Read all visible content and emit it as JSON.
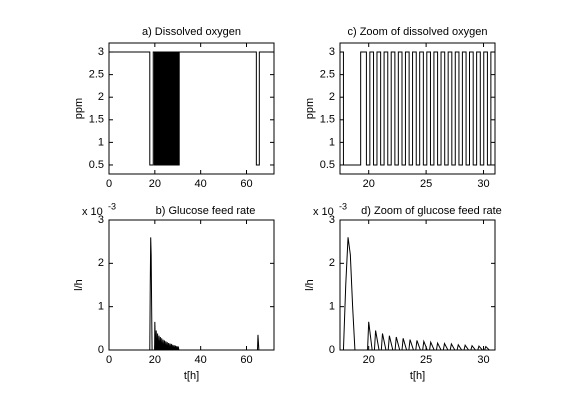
{
  "chart_data": [
    {
      "type": "line",
      "title": "a) Dissolved oxygen",
      "ylabel": "ppm",
      "xlim": [
        0,
        72
      ],
      "ylim": [
        0.3,
        3.2
      ],
      "xticks": [
        0,
        20,
        40,
        60
      ],
      "yticks": [
        0.5,
        1,
        1.5,
        2,
        2.5,
        3
      ],
      "x": [
        0,
        17.8,
        17.8,
        19.3,
        19.3,
        19.8,
        19.8,
        20.1,
        20.1,
        20.42,
        20.42,
        20.72,
        20.72,
        21.04,
        21.04,
        21.34,
        21.34,
        21.66,
        21.66,
        21.96,
        21.96,
        22.28,
        22.28,
        22.58,
        22.58,
        22.9,
        22.9,
        23.2,
        23.2,
        23.52,
        23.52,
        23.82,
        23.82,
        24.14,
        24.14,
        24.44,
        24.44,
        24.76,
        24.76,
        25.06,
        25.06,
        25.38,
        25.38,
        25.68,
        25.68,
        26.0,
        26.0,
        26.3,
        26.3,
        26.62,
        26.62,
        26.92,
        26.92,
        27.24,
        27.24,
        27.54,
        27.54,
        27.86,
        27.86,
        28.16,
        28.16,
        28.48,
        28.48,
        28.78,
        28.78,
        29.1,
        29.1,
        29.4,
        29.4,
        29.72,
        29.72,
        30.02,
        30.02,
        30.34,
        30.34,
        30.64,
        30.64,
        64.3,
        64.3,
        65.6,
        65.6,
        72
      ],
      "series": [
        {
          "color": "#000000",
          "values": [
            3,
            3,
            0.5,
            0.5,
            3,
            3,
            0.5,
            0.5,
            3,
            3,
            0.5,
            0.5,
            3,
            3,
            0.5,
            0.5,
            3,
            3,
            0.5,
            0.5,
            3,
            3,
            0.5,
            0.5,
            3,
            3,
            0.5,
            0.5,
            3,
            3,
            0.5,
            0.5,
            3,
            3,
            0.5,
            0.5,
            3,
            3,
            0.5,
            0.5,
            3,
            3,
            0.5,
            0.5,
            3,
            3,
            0.5,
            0.5,
            3,
            3,
            0.5,
            0.5,
            3,
            3,
            0.5,
            0.5,
            3,
            3,
            0.5,
            0.5,
            3,
            3,
            0.5,
            0.5,
            3,
            3,
            0.5,
            0.5,
            3,
            3,
            0.5,
            0.5,
            3,
            3,
            0.5,
            0.5,
            3,
            3,
            0.5,
            0.5,
            3,
            3
          ]
        }
      ]
    },
    {
      "type": "line",
      "title": "c) Zoom of dissolved oxygen",
      "ylabel": "ppm",
      "xlim": [
        17.5,
        31
      ],
      "ylim": [
        0.3,
        3.2
      ],
      "xticks": [
        20,
        25,
        30
      ],
      "yticks": [
        0.5,
        1,
        1.5,
        2,
        2.5,
        3
      ],
      "x": [
        17.5,
        17.8,
        17.8,
        19.3,
        19.3,
        19.8,
        19.8,
        20.1,
        20.1,
        20.42,
        20.42,
        20.72,
        20.72,
        21.04,
        21.04,
        21.34,
        21.34,
        21.66,
        21.66,
        21.96,
        21.96,
        22.28,
        22.28,
        22.58,
        22.58,
        22.9,
        22.9,
        23.2,
        23.2,
        23.52,
        23.52,
        23.82,
        23.82,
        24.14,
        24.14,
        24.44,
        24.44,
        24.76,
        24.76,
        25.06,
        25.06,
        25.38,
        25.38,
        25.68,
        25.68,
        26.0,
        26.0,
        26.3,
        26.3,
        26.62,
        26.62,
        26.92,
        26.92,
        27.24,
        27.24,
        27.54,
        27.54,
        27.86,
        27.86,
        28.16,
        28.16,
        28.48,
        28.48,
        28.78,
        28.78,
        29.1,
        29.1,
        29.4,
        29.4,
        29.72,
        29.72,
        30.02,
        30.02,
        30.34,
        30.34,
        30.64,
        30.64,
        31
      ],
      "series": [
        {
          "color": "#000000",
          "values": [
            3,
            3,
            0.5,
            0.5,
            3,
            3,
            0.5,
            0.5,
            3,
            3,
            0.5,
            0.5,
            3,
            3,
            0.5,
            0.5,
            3,
            3,
            0.5,
            0.5,
            3,
            3,
            0.5,
            0.5,
            3,
            3,
            0.5,
            0.5,
            3,
            3,
            0.5,
            0.5,
            3,
            3,
            0.5,
            0.5,
            3,
            3,
            0.5,
            0.5,
            3,
            3,
            0.5,
            0.5,
            3,
            3,
            0.5,
            0.5,
            3,
            3,
            0.5,
            0.5,
            3,
            3,
            0.5,
            0.5,
            3,
            3,
            0.5,
            0.5,
            3,
            3,
            0.5,
            0.5,
            3,
            3,
            0.5,
            0.5,
            3,
            3,
            0.5,
            0.5,
            3,
            3,
            0.5,
            0.5,
            3,
            3
          ]
        }
      ]
    },
    {
      "type": "line",
      "title": "b) Glucose feed rate",
      "ylabel": "l/h",
      "xlabel": "t[h]",
      "y_multiplier": {
        "base": "x 10",
        "exponent": "-3"
      },
      "xlim": [
        0,
        72
      ],
      "ylim": [
        0,
        3
      ],
      "xticks": [
        0,
        20,
        40,
        60
      ],
      "yticks": [
        0,
        1,
        2,
        3
      ],
      "x": [
        0,
        17.8,
        18.0,
        18.2,
        18.4,
        18.6,
        18.8,
        19.9,
        20.0,
        20.3,
        20.5,
        20.6,
        20.9,
        21.1,
        21.2,
        21.5,
        21.7,
        21.8,
        22.1,
        22.3,
        22.4,
        22.7,
        22.9,
        23.0,
        23.3,
        23.5,
        23.6,
        23.9,
        24.1,
        24.2,
        24.5,
        24.7,
        24.8,
        25.1,
        25.3,
        25.4,
        25.7,
        25.9,
        26.0,
        26.3,
        26.5,
        26.6,
        26.9,
        27.1,
        27.2,
        27.5,
        27.7,
        27.8,
        28.1,
        28.3,
        28.4,
        28.7,
        28.9,
        29.0,
        29.3,
        29.5,
        29.6,
        29.9,
        30.1,
        30.2,
        30.5,
        64.8,
        65.0,
        65.4,
        72
      ],
      "series": [
        {
          "color": "#000000",
          "values": [
            0,
            0,
            1.5,
            2.6,
            2.2,
            1.0,
            0,
            0,
            0.65,
            0,
            0,
            0.45,
            0,
            0,
            0.38,
            0,
            0,
            0.33,
            0,
            0,
            0.3,
            0,
            0,
            0.27,
            0,
            0,
            0.24,
            0,
            0,
            0.22,
            0,
            0,
            0.2,
            0,
            0,
            0.18,
            0,
            0,
            0.16,
            0,
            0,
            0.15,
            0,
            0,
            0.14,
            0,
            0,
            0.12,
            0,
            0,
            0.11,
            0,
            0,
            0.1,
            0,
            0,
            0.09,
            0,
            0,
            0.08,
            0,
            0,
            0.35,
            0,
            0
          ]
        }
      ]
    },
    {
      "type": "line",
      "title": "d) Zoom of glucose feed rate",
      "ylabel": "l/h",
      "xlabel": "t[h]",
      "y_multiplier": {
        "base": "x 10",
        "exponent": "-3"
      },
      "xlim": [
        17.5,
        31
      ],
      "ylim": [
        0,
        3
      ],
      "xticks": [
        20,
        25,
        30
      ],
      "yticks": [
        0,
        1,
        2,
        3
      ],
      "x": [
        17.5,
        17.8,
        18.0,
        18.2,
        18.4,
        18.6,
        18.8,
        19.9,
        20.0,
        20.3,
        20.5,
        20.6,
        20.9,
        21.1,
        21.2,
        21.5,
        21.7,
        21.8,
        22.1,
        22.3,
        22.4,
        22.7,
        22.9,
        23.0,
        23.3,
        23.5,
        23.6,
        23.9,
        24.1,
        24.2,
        24.5,
        24.7,
        24.8,
        25.1,
        25.3,
        25.4,
        25.7,
        25.9,
        26.0,
        26.3,
        26.5,
        26.6,
        26.9,
        27.1,
        27.2,
        27.5,
        27.7,
        27.8,
        28.1,
        28.3,
        28.4,
        28.7,
        28.9,
        29.0,
        29.3,
        29.5,
        29.6,
        29.9,
        30.1,
        30.2,
        30.5,
        31
      ],
      "series": [
        {
          "color": "#000000",
          "values": [
            0,
            0,
            1.5,
            2.6,
            2.2,
            1.0,
            0,
            0,
            0.65,
            0,
            0,
            0.45,
            0,
            0,
            0.38,
            0,
            0,
            0.33,
            0,
            0,
            0.3,
            0,
            0,
            0.27,
            0,
            0,
            0.24,
            0,
            0,
            0.22,
            0,
            0,
            0.2,
            0,
            0,
            0.18,
            0,
            0,
            0.16,
            0,
            0,
            0.15,
            0,
            0,
            0.14,
            0,
            0,
            0.12,
            0,
            0,
            0.11,
            0,
            0,
            0.1,
            0,
            0,
            0.09,
            0,
            0,
            0.08,
            0,
            0
          ]
        }
      ]
    }
  ]
}
